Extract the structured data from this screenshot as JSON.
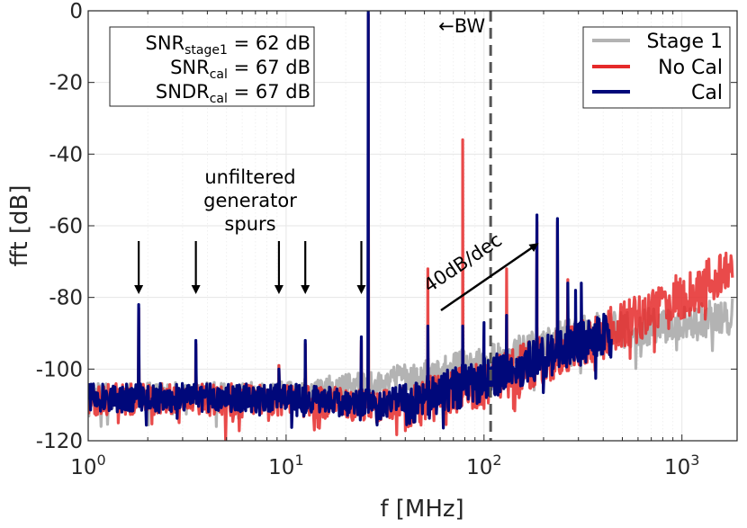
{
  "chart_data": {
    "type": "line",
    "xscale": "log",
    "xlim": [
      1,
      1900
    ],
    "ylim": [
      -120,
      0
    ],
    "xlabel": "f [MHz]",
    "ylabel": "fft [dB]",
    "xticks": [
      1,
      10,
      100,
      1000
    ],
    "xtick_labels": [
      {
        "base": "10",
        "exp": "0"
      },
      {
        "base": "10",
        "exp": "1"
      },
      {
        "base": "10",
        "exp": "2"
      },
      {
        "base": "10",
        "exp": "3"
      }
    ],
    "yticks": [
      0,
      -20,
      -40,
      -60,
      -80,
      -100,
      -120
    ],
    "ytick_labels": [
      "0",
      "-20",
      "-40",
      "-60",
      "-80",
      "-100",
      "-120"
    ],
    "grid": true,
    "legend_position": "top-right",
    "series": [
      {
        "name": "Stage 1",
        "color": "#b3b3b3",
        "noise_floor": [
          [
            1,
            -104
          ],
          [
            10,
            -103.5
          ],
          [
            30,
            -100
          ],
          [
            100,
            -93
          ],
          [
            300,
            -85
          ],
          [
            1000,
            -82
          ],
          [
            1800,
            -80
          ]
        ],
        "peaks": [
          [
            1.8,
            -83
          ],
          [
            3.5,
            -93
          ],
          [
            9.2,
            -99
          ],
          [
            12.5,
            -93
          ],
          [
            24,
            -92
          ],
          [
            26,
            -1
          ]
        ],
        "f_max": 1800
      },
      {
        "name": "No Cal",
        "color": "#e52a2a",
        "noise_floor": [
          [
            1,
            -104
          ],
          [
            10,
            -104
          ],
          [
            30,
            -106
          ],
          [
            100,
            -97
          ],
          [
            300,
            -87
          ],
          [
            1000,
            -73
          ],
          [
            1800,
            -66
          ]
        ],
        "peaks": [
          [
            1.8,
            -83
          ],
          [
            3.5,
            -93
          ],
          [
            9.2,
            -99
          ],
          [
            12.5,
            -93
          ],
          [
            24,
            -92
          ],
          [
            26,
            -1
          ],
          [
            52,
            -72
          ],
          [
            78,
            -36
          ],
          [
            130,
            -72
          ],
          [
            185,
            -59
          ],
          [
            235,
            -59
          ],
          [
            265,
            -75
          ]
        ],
        "f_max": 1800
      },
      {
        "name": "Cal",
        "color": "#00087a",
        "noise_floor": [
          [
            1,
            -104
          ],
          [
            10,
            -104
          ],
          [
            30,
            -106
          ],
          [
            100,
            -97
          ],
          [
            300,
            -87
          ],
          [
            440,
            -84
          ]
        ],
        "peaks": [
          [
            1.8,
            -82
          ],
          [
            3.5,
            -92
          ],
          [
            9.2,
            -100
          ],
          [
            12.5,
            -92
          ],
          [
            24,
            -91
          ],
          [
            26,
            0
          ],
          [
            52,
            -88
          ],
          [
            78,
            -88
          ],
          [
            100,
            -87
          ],
          [
            130,
            -85
          ],
          [
            185,
            -57
          ],
          [
            235,
            -58
          ],
          [
            265,
            -76
          ],
          [
            290,
            -78
          ],
          [
            310,
            -76
          ]
        ],
        "f_max": 440
      }
    ],
    "annotations": {
      "bw_label": "←BW",
      "bw_freq": 108,
      "spurs_label": [
        "unfiltered",
        "generator",
        "spurs"
      ],
      "spur_arrow_freqs": [
        1.8,
        3.5,
        9.2,
        12.5,
        24
      ],
      "slope_label": "40dB/dec",
      "snr_box": [
        {
          "main": "SNR",
          "sub": "stage1",
          "rest": " = 62 dB"
        },
        {
          "main": "SNR",
          "sub": "cal",
          "rest": " = 67 dB"
        },
        {
          "main": "SNDR",
          "sub": "cal",
          "rest": " = 67 dB"
        }
      ]
    }
  }
}
